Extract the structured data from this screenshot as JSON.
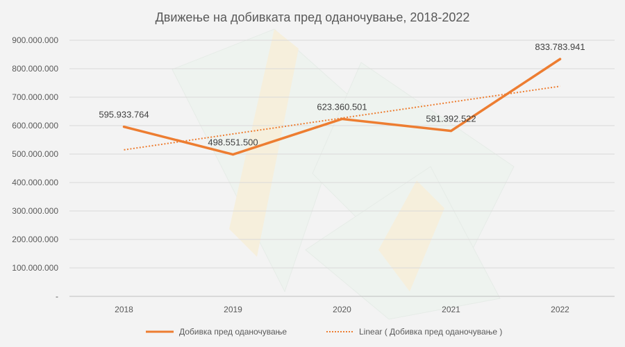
{
  "chart_data": {
    "type": "line",
    "title": "Движење на добивката пред оданочување, 2018-2022",
    "categories": [
      "2018",
      "2019",
      "2020",
      "2021",
      "2022"
    ],
    "series": [
      {
        "name": "Добивка пред оданочување",
        "values": [
          595933764,
          498551500,
          623360501,
          581392522,
          833783941
        ],
        "labels": [
          "595.933.764",
          "498.551.500",
          "623.360.501",
          "581.392.522",
          "833.783.941"
        ],
        "color": "#ed7d31"
      }
    ],
    "trendline": {
      "type": "linear",
      "name": "Linear ( Добивка пред оданочување )",
      "color": "#ed7d31"
    },
    "ylim": [
      0,
      900000000
    ],
    "y_ticks": [
      0,
      100000000,
      200000000,
      300000000,
      400000000,
      500000000,
      600000000,
      700000000,
      800000000,
      900000000
    ],
    "y_tick_labels": [
      "-",
      "100.000.000",
      "200.000.000",
      "300.000.000",
      "400.000.000",
      "500.000.000",
      "600.000.000",
      "700.000.000",
      "800.000.000",
      "900.000.000"
    ],
    "grid": true,
    "legend": "bottom",
    "background_image": "book-covers-watermark"
  }
}
